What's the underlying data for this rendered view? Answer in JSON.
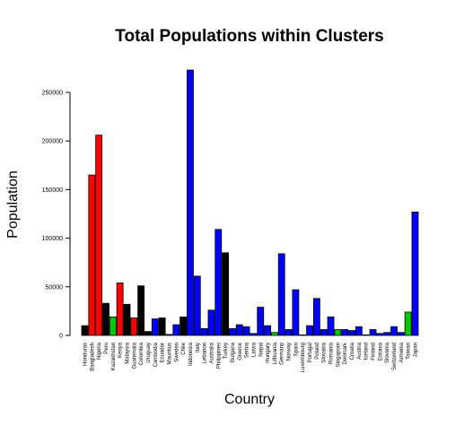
{
  "chart_data": {
    "type": "bar",
    "title": "Total Populations within Clusters",
    "xlabel": "Country",
    "ylabel": "Population",
    "ylim": [
      0,
      274000
    ],
    "yticks": [
      0,
      50000,
      100000,
      150000,
      200000,
      250000
    ],
    "ytick_labels": [
      "0",
      "50000",
      "100000",
      "150000",
      "200000",
      "250000"
    ],
    "grid": false,
    "legend": "none",
    "cluster_colors": {
      "black": "#000000",
      "red": "#ff0000",
      "green": "#00cc00",
      "blue": "#0000ff"
    },
    "categories": [
      "Honduras",
      "Bangladesh",
      "Nigeria",
      "Peru",
      "Kazakhstan",
      "Kenya",
      "Malaysia",
      "Guatemala",
      "Colombia",
      "Uruguay",
      "Cambodia",
      "Ecuador",
      "Mauritius",
      "Sweden",
      "Chile",
      "Indonesia",
      "Italy",
      "Lebanon",
      "Australia",
      "Philippines",
      "Turkey",
      "Bulgaria",
      "Greece",
      "Serbia",
      "Latvia",
      "Nepal",
      "Hungary",
      "Lithuania",
      "Germany",
      "Norway",
      "Spain",
      "Luxembourg",
      "Portugal",
      "Poland",
      "Slovakia",
      "Romania",
      "Singapore",
      "Denmark",
      "Croatia",
      "Austria",
      "Iceland",
      "Finland",
      "Estonia",
      "Slovenia",
      "Switzerland",
      "Armenia",
      "Taiwan",
      "Japan"
    ],
    "values": [
      10000,
      165000,
      206000,
      33000,
      19000,
      54000,
      32000,
      18000,
      51000,
      4000,
      17000,
      18000,
      1000,
      11000,
      19000,
      273000,
      61000,
      7000,
      26000,
      109000,
      85000,
      7000,
      11000,
      9000,
      2000,
      29000,
      10000,
      3000,
      84000,
      6000,
      47000,
      500,
      10000,
      38000,
      6000,
      19000,
      6000,
      6000,
      5000,
      9000,
      500,
      6000,
      2000,
      3000,
      9000,
      3000,
      24000,
      127000
    ],
    "clusters": [
      "black",
      "red",
      "red",
      "black",
      "green",
      "red",
      "black",
      "red",
      "black",
      "black",
      "blue",
      "black",
      "blue",
      "blue",
      "black",
      "blue",
      "blue",
      "blue",
      "blue",
      "blue",
      "black",
      "blue",
      "blue",
      "blue",
      "blue",
      "blue",
      "blue",
      "green",
      "blue",
      "blue",
      "blue",
      "blue",
      "blue",
      "blue",
      "blue",
      "blue",
      "green",
      "blue",
      "blue",
      "blue",
      "blue",
      "blue",
      "blue",
      "blue",
      "blue",
      "blue",
      "green",
      "blue"
    ]
  }
}
